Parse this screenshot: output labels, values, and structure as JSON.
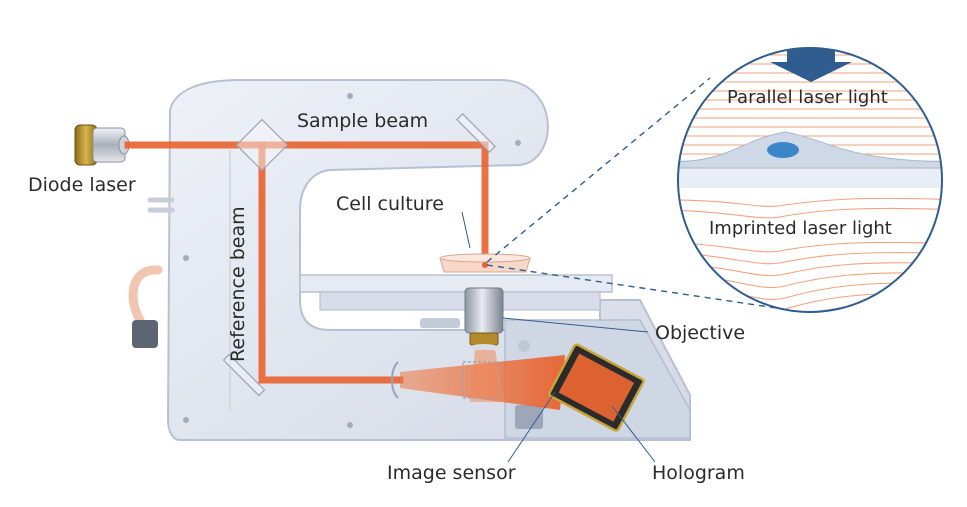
{
  "labels": {
    "diode_laser": "Diode laser",
    "sample_beam": "Sample beam",
    "reference_beam": "Reference beam",
    "cell_culture": "Cell culture",
    "objective": "Objective",
    "image_sensor": "Image sensor",
    "hologram": "Hologram",
    "parallel_light": "Parallel laser light",
    "imprinted_light": "Imprinted laser light"
  },
  "colors": {
    "beam": "#e8622e",
    "beam_light": "#f3a07a",
    "housing": "#dfe4ef",
    "housing_edge": "#b8c1d3",
    "arrow": "#2f5d8f",
    "leader": "#2f5d8f",
    "wave_line": "#f2a37e"
  }
}
